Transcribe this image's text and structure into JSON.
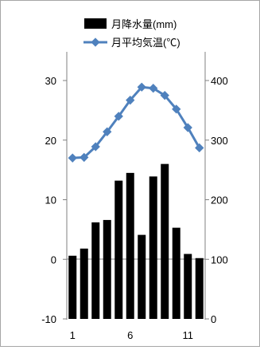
{
  "chart_data": {
    "type": "bar",
    "legend": {
      "position": "top",
      "items": [
        {
          "label": "月降水量(mm)",
          "marker": "bar"
        },
        {
          "label": "月平均気温(℃)",
          "marker": "line"
        }
      ]
    },
    "x": [
      1,
      2,
      3,
      4,
      5,
      6,
      7,
      8,
      9,
      10,
      11,
      12
    ],
    "x_tick_labels": [
      "1",
      "6",
      "11"
    ],
    "y_left": {
      "range": [
        -10,
        30
      ],
      "ticks": [
        "30",
        "20",
        "10",
        "0",
        "-10"
      ]
    },
    "y_right": {
      "range": [
        0,
        400
      ],
      "ticks": [
        "400",
        "300",
        "200",
        "100",
        "0"
      ]
    },
    "series": [
      {
        "name": "月降水量(mm)",
        "type": "bar",
        "axis": "right",
        "color": "#000000",
        "values": [
          106,
          118,
          162,
          166,
          232,
          245,
          141,
          239,
          260,
          153,
          109,
          102
        ]
      },
      {
        "name": "月平均気温(℃)",
        "type": "line",
        "axis": "left",
        "color": "#4f81bd",
        "values": [
          17.0,
          17.1,
          18.9,
          21.4,
          24.0,
          26.7,
          28.9,
          28.7,
          27.5,
          25.2,
          22.1,
          18.7
        ]
      }
    ]
  }
}
